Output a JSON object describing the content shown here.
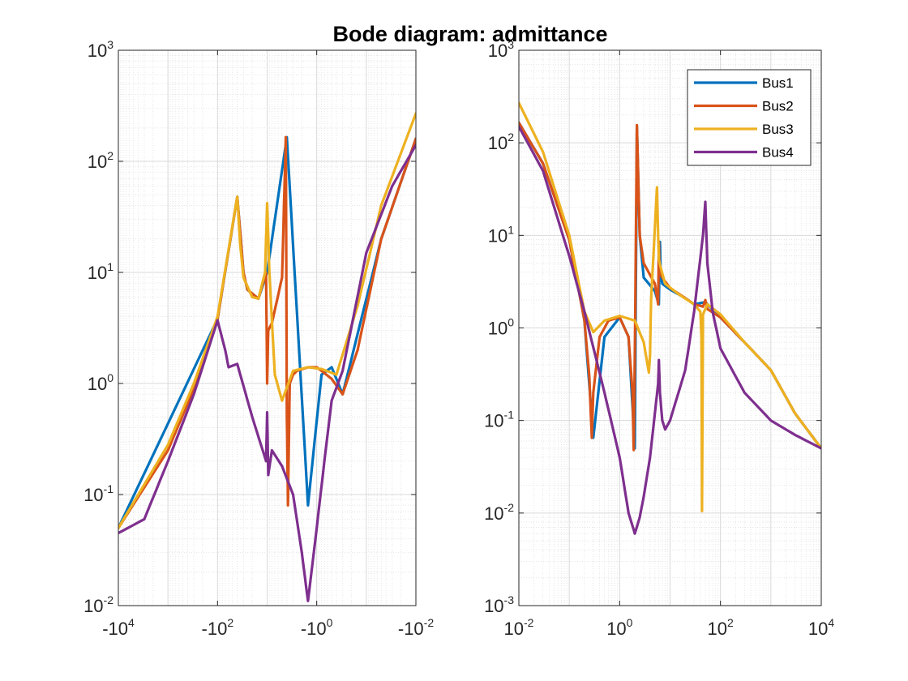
{
  "figure": {
    "title": "Bode diagram: admittance"
  },
  "colors": {
    "Bus1": "#0072BD",
    "Bus2": "#D95319",
    "Bus3": "#EDB120",
    "Bus4": "#7E2F8E",
    "grid": "#d9d9d9",
    "axis": "#262626"
  },
  "chart_data": [
    {
      "type": "line",
      "title": "Bode diagram: admittance",
      "xscale": "log (negative frequency)",
      "yscale": "log",
      "xlim": [
        -10000,
        -0.01
      ],
      "ylim": [
        0.01,
        1000
      ],
      "grid": true,
      "x_ticks": [
        {
          "base": "-10",
          "exp": "4",
          "pos": 0
        },
        {
          "base": "-10",
          "exp": "2",
          "pos": 0.25
        },
        {
          "base": "-10",
          "exp": "0",
          "pos": 0.5
        },
        {
          "base": "-10",
          "exp": "-2",
          "pos": 0.75
        }
      ],
      "x_tick_positions": [
        10000,
        100,
        1,
        0.01
      ],
      "y_ticks": [
        {
          "base": "10",
          "exp": "-2",
          "v": 0.01
        },
        {
          "base": "10",
          "exp": "-1",
          "v": 0.1
        },
        {
          "base": "10",
          "exp": "0",
          "v": 1
        },
        {
          "base": "10",
          "exp": "1",
          "v": 10
        },
        {
          "base": "10",
          "exp": "2",
          "v": 100
        },
        {
          "base": "10",
          "exp": "3",
          "v": 1000
        }
      ],
      "series": [
        {
          "name": "Bus1",
          "x": [
            -10000,
            -100,
            -40,
            -30,
            -25,
            -15,
            -10,
            -4,
            -1.5,
            -0.8,
            -0.5,
            -0.3,
            -0.05,
            -0.01
          ],
          "y": [
            0.05,
            3.8,
            48,
            10,
            7,
            5.8,
            10,
            165,
            0.08,
            1.2,
            1.4,
            0.8,
            20,
            160
          ]
        },
        {
          "name": "Bus2",
          "x": [
            -10000,
            -1000,
            -300,
            -100,
            -40,
            -30,
            -25,
            -15,
            -10.5,
            -10,
            -9.5,
            -8,
            -5,
            -4.2,
            -4,
            -3.8,
            -3.5,
            -3,
            -2.5,
            -1.5,
            -1,
            -0.8,
            -0.5,
            -0.3,
            -0.15,
            -0.05,
            -0.01
          ],
          "y": [
            0.05,
            0.25,
            0.9,
            3.8,
            48,
            10,
            7,
            5.8,
            10,
            1,
            3,
            3.5,
            9,
            165,
            0.5,
            0.08,
            1,
            1.2,
            1.3,
            1.4,
            1.4,
            1.3,
            1.1,
            0.8,
            2,
            20,
            160
          ]
        },
        {
          "name": "Bus3",
          "x": [
            -10000,
            -1000,
            -300,
            -100,
            -45,
            -40,
            -35,
            -30,
            -20,
            -15,
            -11,
            -10,
            -9,
            -7,
            -5,
            -3,
            -1.5,
            -0.8,
            -0.4,
            -0.15,
            -0.05,
            -0.01
          ],
          "y": [
            0.05,
            0.28,
            1,
            4,
            35,
            48,
            18,
            9,
            6,
            5.8,
            10,
            42,
            10,
            1.2,
            0.7,
            1.3,
            1.4,
            1.35,
            1.2,
            5,
            40,
            270
          ]
        },
        {
          "name": "Bus4",
          "x": [
            -10000,
            -3000,
            -1000,
            -300,
            -100,
            -70,
            -60,
            -40,
            -20,
            -10.5,
            -10,
            -9.5,
            -8,
            -5,
            -3,
            -2,
            -1.5,
            -1,
            -0.7,
            -0.5,
            -0.3,
            -0.1,
            -0.03,
            -0.01
          ],
          "y": [
            0.045,
            0.06,
            0.2,
            0.8,
            3.7,
            2,
            1.4,
            1.5,
            0.5,
            0.2,
            0.55,
            0.15,
            0.25,
            0.18,
            0.1,
            0.03,
            0.011,
            0.05,
            0.2,
            0.7,
            1.3,
            15,
            60,
            140
          ]
        }
      ]
    },
    {
      "type": "line",
      "xscale": "log",
      "yscale": "log",
      "xlim": [
        0.01,
        10000
      ],
      "ylim": [
        0.001,
        1000
      ],
      "grid": true,
      "legend": {
        "position": "top-right",
        "entries": [
          "Bus1",
          "Bus2",
          "Bus3",
          "Bus4"
        ]
      },
      "x_ticks": [
        {
          "base": "10",
          "exp": "-2",
          "v": 0.01
        },
        {
          "base": "10",
          "exp": "0",
          "v": 1
        },
        {
          "base": "10",
          "exp": "2",
          "v": 100
        },
        {
          "base": "10",
          "exp": "4",
          "v": 10000
        }
      ],
      "y_ticks": [
        {
          "base": "10",
          "exp": "-3",
          "v": 0.001
        },
        {
          "base": "10",
          "exp": "-2",
          "v": 0.01
        },
        {
          "base": "10",
          "exp": "-1",
          "v": 0.1
        },
        {
          "base": "10",
          "exp": "0",
          "v": 1
        },
        {
          "base": "10",
          "exp": "1",
          "v": 10
        },
        {
          "base": "10",
          "exp": "2",
          "v": 100
        },
        {
          "base": "10",
          "exp": "3",
          "v": 1000
        }
      ],
      "series": [
        {
          "name": "Bus1",
          "x": [
            0.01,
            0.03,
            0.1,
            0.2,
            0.3,
            0.5,
            1,
            1.5,
            2,
            2.2,
            2.5,
            3,
            5,
            6,
            6.3,
            6.5,
            7,
            10,
            20,
            30,
            50,
            100,
            300,
            1000,
            3000,
            10000
          ],
          "y": [
            165,
            60,
            9,
            1.2,
            0.065,
            0.8,
            1.3,
            0.8,
            0.05,
            150,
            10,
            3.5,
            2.5,
            1.8,
            8.5,
            4,
            3,
            2.6,
            2.1,
            1.8,
            1.9,
            1.3,
            0.7,
            0.35,
            0.12,
            0.05
          ]
        },
        {
          "name": "Bus2",
          "x": [
            0.01,
            0.03,
            0.1,
            0.2,
            0.25,
            0.28,
            0.3,
            0.4,
            0.6,
            1,
            1.5,
            1.8,
            1.9,
            2,
            2.2,
            2.5,
            3,
            5,
            5.8,
            6,
            6.2,
            7,
            10,
            20,
            30,
            45,
            50,
            55,
            100,
            300,
            1000,
            3000,
            10000
          ],
          "y": [
            165,
            60,
            9,
            1.2,
            0.3,
            0.065,
            0.2,
            0.8,
            1.2,
            1.3,
            0.8,
            0.2,
            0.048,
            0.5,
            155,
            10,
            5,
            3,
            1.8,
            8.5,
            4,
            3.5,
            2.7,
            2.1,
            1.8,
            1.7,
            2,
            1.6,
            1.3,
            0.7,
            0.35,
            0.12,
            0.05
          ]
        },
        {
          "name": "Bus3",
          "x": [
            0.01,
            0.03,
            0.1,
            0.2,
            0.3,
            0.5,
            1,
            2,
            3,
            3.8,
            4,
            4.2,
            4.8,
            5.5,
            5.8,
            6,
            6.5,
            8,
            15,
            30,
            40,
            42,
            43,
            45,
            55,
            100,
            300,
            1000,
            3000,
            10000
          ],
          "y": [
            270,
            80,
            10,
            1.5,
            0.9,
            1.2,
            1.35,
            1.2,
            0.7,
            0.33,
            0.5,
            2,
            8,
            33,
            10,
            5.5,
            4.5,
            3,
            2.3,
            1.8,
            1.5,
            0.8,
            0.0105,
            1.4,
            1.8,
            1.4,
            0.7,
            0.35,
            0.12,
            0.05
          ]
        },
        {
          "name": "Bus4",
          "x": [
            0.01,
            0.03,
            0.1,
            0.2,
            0.5,
            1,
            1.5,
            2,
            2.5,
            3,
            4,
            5,
            5.8,
            6,
            6.3,
            7,
            8,
            10,
            20,
            30,
            45,
            50,
            55,
            70,
            100,
            300,
            1000,
            3000,
            10000
          ],
          "y": [
            150,
            50,
            6,
            1.5,
            0.2,
            0.04,
            0.01,
            0.006,
            0.009,
            0.015,
            0.04,
            0.12,
            0.25,
            0.45,
            0.2,
            0.1,
            0.08,
            0.1,
            0.35,
            1.5,
            10,
            23,
            5,
            1.5,
            0.6,
            0.2,
            0.1,
            0.07,
            0.05
          ]
        }
      ]
    }
  ]
}
